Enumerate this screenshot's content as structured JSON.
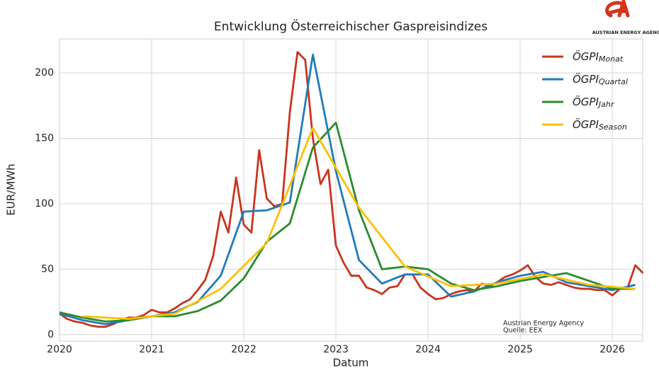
{
  "chart_data": {
    "type": "line",
    "title": "Entwicklung Österreichischer Gaspreisindizes",
    "xlabel": "Datum",
    "ylabel": "EUR/MWh",
    "xlim": [
      2020,
      2026.33
    ],
    "xticks": [
      2020,
      2021,
      2022,
      2023,
      2024,
      2025,
      2026
    ],
    "ylim": [
      -5,
      226
    ],
    "yticks": [
      0,
      50,
      100,
      150,
      200
    ],
    "grid": true,
    "legend": "upper right",
    "annotations": [
      "Austrian Energy Agency",
      "Quelle: EEX"
    ],
    "logo_text": "AUSTRIAN ENERGY AGENCY",
    "series": [
      {
        "name": "ÖGPI",
        "name_subscript": "Monat",
        "color": "#c9341f",
        "x": [
          2020,
          2020.083,
          2020.167,
          2020.25,
          2020.333,
          2020.417,
          2020.5,
          2020.583,
          2020.667,
          2020.75,
          2020.833,
          2020.917,
          2021,
          2021.083,
          2021.167,
          2021.25,
          2021.333,
          2021.417,
          2021.5,
          2021.583,
          2021.667,
          2021.75,
          2021.833,
          2021.917,
          2022,
          2022.083,
          2022.167,
          2022.25,
          2022.333,
          2022.417,
          2022.5,
          2022.583,
          2022.667,
          2022.75,
          2022.833,
          2022.917,
          2023,
          2023.083,
          2023.167,
          2023.25,
          2023.333,
          2023.417,
          2023.5,
          2023.583,
          2023.667,
          2023.75,
          2023.833,
          2023.917,
          2024,
          2024.083,
          2024.167,
          2024.25,
          2024.333,
          2024.417,
          2024.5,
          2024.583,
          2024.667,
          2024.75,
          2024.833,
          2024.917,
          2025,
          2025.083,
          2025.167,
          2025.25,
          2025.333,
          2025.417,
          2025.5,
          2025.583,
          2025.667,
          2025.75,
          2025.833,
          2025.917,
          2026,
          2026.083,
          2026.167,
          2026.25,
          2026.333
        ],
        "values": [
          16,
          12,
          10,
          9,
          7,
          6,
          6,
          8,
          11,
          13,
          13,
          15,
          19,
          17,
          17,
          20,
          24,
          27,
          34,
          42,
          60,
          94,
          78,
          120,
          84,
          78,
          141,
          104,
          98,
          100,
          170,
          216,
          210,
          150,
          115,
          126,
          68,
          55,
          45,
          45,
          36,
          34,
          31,
          36,
          37,
          46,
          46,
          36,
          31,
          27,
          28,
          31,
          33,
          34,
          33,
          39,
          37,
          40,
          44,
          46,
          49,
          53,
          44,
          39,
          38,
          40,
          38,
          36,
          35,
          35,
          34,
          34,
          30,
          35,
          36,
          53,
          47
        ]
      },
      {
        "name": "ÖGPI",
        "name_subscript": "Quartal",
        "color": "#1f7bbb",
        "x": [
          2020,
          2020.25,
          2020.5,
          2020.75,
          2021,
          2021.25,
          2021.5,
          2021.75,
          2022,
          2022.25,
          2022.5,
          2022.75,
          2023,
          2023.25,
          2023.5,
          2023.75,
          2024,
          2024.25,
          2024.5,
          2024.75,
          2025,
          2025.25,
          2025.5,
          2025.75,
          2026,
          2026.25
        ],
        "values": [
          16,
          11,
          8,
          11,
          14,
          17,
          25,
          45,
          94,
          95,
          101,
          214,
          125,
          57,
          39,
          46,
          46,
          29,
          33,
          40,
          45,
          48,
          40,
          37,
          34,
          38
        ]
      },
      {
        "name": "ÖGPI",
        "name_subscript": "Jahr",
        "color": "#2b8c2b",
        "x": [
          2020,
          2020.25,
          2020.5,
          2020.75,
          2021,
          2021.25,
          2021.5,
          2021.75,
          2022,
          2022.25,
          2022.5,
          2022.75,
          2023,
          2023.25,
          2023.5,
          2023.75,
          2024,
          2024.25,
          2024.5,
          2024.75,
          2025,
          2025.25,
          2025.5,
          2025.75,
          2026,
          2026.25
        ],
        "values": [
          17,
          13,
          10,
          11,
          14,
          14,
          18,
          26,
          43,
          71,
          85,
          143,
          162,
          95,
          50,
          52,
          50,
          39,
          34,
          37,
          41,
          44,
          47,
          41,
          35,
          35
        ]
      },
      {
        "name": "ÖGPI",
        "name_subscript": "Season",
        "color": "#fbc100",
        "x": [
          2020.25,
          2020.75,
          2021.25,
          2021.75,
          2022.25,
          2022.75,
          2023.25,
          2023.75,
          2024.25,
          2024.75,
          2025.25,
          2025.75,
          2026.25
        ],
        "values": [
          14,
          12,
          16,
          35,
          70,
          158,
          97,
          52,
          37,
          39,
          46,
          38,
          35
        ]
      }
    ]
  }
}
